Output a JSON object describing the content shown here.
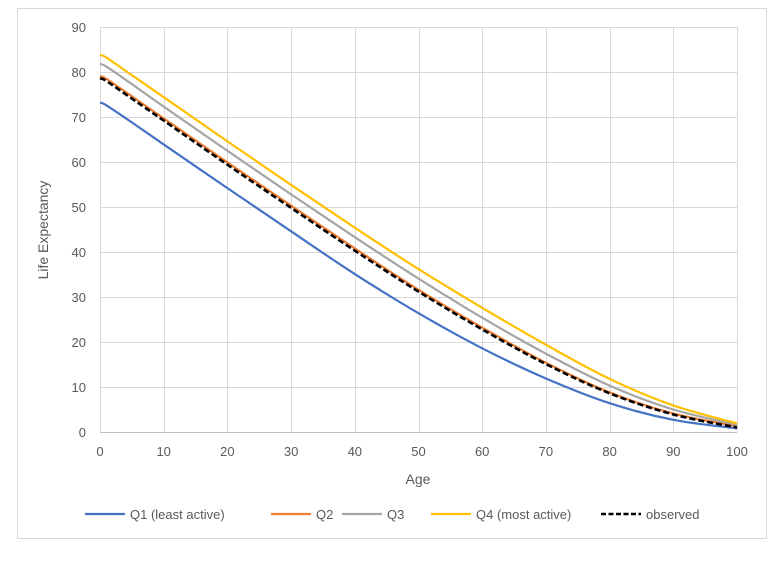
{
  "chart_data": {
    "type": "line",
    "title": "",
    "xlabel": "Age",
    "ylabel": "Life Expectancy",
    "xlim": [
      0,
      100
    ],
    "ylim": [
      0,
      90
    ],
    "x_ticks": [
      0,
      10,
      20,
      30,
      40,
      50,
      60,
      70,
      80,
      90,
      100
    ],
    "y_ticks": [
      0,
      10,
      20,
      30,
      40,
      50,
      60,
      70,
      80,
      90
    ],
    "grid": true,
    "legend_position": "bottom",
    "x": [
      0,
      1,
      5,
      10,
      20,
      30,
      40,
      50,
      60,
      70,
      80,
      90,
      100
    ],
    "series": [
      {
        "name": "Q1 (least active)",
        "color": "#4472C4",
        "dash": "solid",
        "values": [
          73.2,
          72.6,
          68.8,
          63.9,
          54.2,
          44.6,
          35.1,
          26.4,
          18.6,
          11.9,
          6.4,
          2.7,
          0.8
        ]
      },
      {
        "name": "Q2",
        "color": "#ED7D31",
        "dash": "solid",
        "values": [
          79.1,
          78.5,
          74.6,
          69.7,
          59.9,
          50.3,
          40.8,
          31.6,
          23.2,
          15.4,
          8.8,
          4.1,
          1.3
        ]
      },
      {
        "name": "Q3",
        "color": "#A5A5A5",
        "dash": "solid",
        "values": [
          81.8,
          81.2,
          77.3,
          72.3,
          62.5,
          52.8,
          43.3,
          34.1,
          25.4,
          17.4,
          10.3,
          5.0,
          1.6
        ]
      },
      {
        "name": "Q4 (most active)",
        "color": "#FFC000",
        "dash": "solid",
        "values": [
          83.8,
          83.2,
          79.3,
          74.4,
          64.6,
          54.9,
          45.4,
          36.2,
          27.6,
          19.4,
          11.8,
          5.9,
          1.9
        ]
      },
      {
        "name": "observed",
        "color": "#000000",
        "dash": "dashed",
        "values": [
          78.6,
          78.0,
          74.1,
          69.2,
          59.4,
          49.8,
          40.3,
          31.2,
          22.8,
          15.1,
          8.6,
          3.9,
          1.0
        ]
      }
    ]
  }
}
